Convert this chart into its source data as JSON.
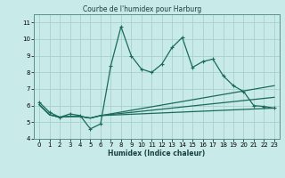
{
  "title": "Courbe de l'humidex pour Harburg",
  "xlabel": "Humidex (Indice chaleur)",
  "xlim": [
    -0.5,
    23.5
  ],
  "ylim": [
    4,
    11.5
  ],
  "yticks": [
    4,
    5,
    6,
    7,
    8,
    9,
    10,
    11
  ],
  "xticks": [
    0,
    1,
    2,
    3,
    4,
    5,
    6,
    7,
    8,
    9,
    10,
    11,
    12,
    13,
    14,
    15,
    16,
    17,
    18,
    19,
    20,
    21,
    22,
    23
  ],
  "bg_color": "#c8eae8",
  "grid_color": "#a8d0cc",
  "line_color": "#1a6b5a",
  "line1_x": [
    0,
    1,
    2,
    3,
    4,
    5,
    6,
    7,
    8,
    9,
    10,
    11,
    12,
    13,
    14,
    15,
    16,
    17,
    18,
    19,
    20,
    21,
    22,
    23
  ],
  "line1_y": [
    6.2,
    5.6,
    5.3,
    5.5,
    5.4,
    4.6,
    4.9,
    8.4,
    10.75,
    9.0,
    8.2,
    8.0,
    8.5,
    9.5,
    10.1,
    8.3,
    8.65,
    8.8,
    7.8,
    7.2,
    6.85,
    6.0,
    5.95,
    5.85
  ],
  "line2_x": [
    0,
    1,
    2,
    3,
    4,
    5,
    6,
    23
  ],
  "line2_y": [
    6.05,
    5.45,
    5.3,
    5.35,
    5.35,
    5.25,
    5.4,
    5.85
  ],
  "line3_x": [
    0,
    1,
    2,
    3,
    4,
    5,
    6,
    23
  ],
  "line3_y": [
    6.05,
    5.45,
    5.3,
    5.35,
    5.35,
    5.25,
    5.4,
    6.5
  ],
  "line4_x": [
    0,
    1,
    2,
    3,
    4,
    5,
    6,
    23
  ],
  "line4_y": [
    6.05,
    5.45,
    5.3,
    5.35,
    5.35,
    5.25,
    5.4,
    7.2
  ]
}
